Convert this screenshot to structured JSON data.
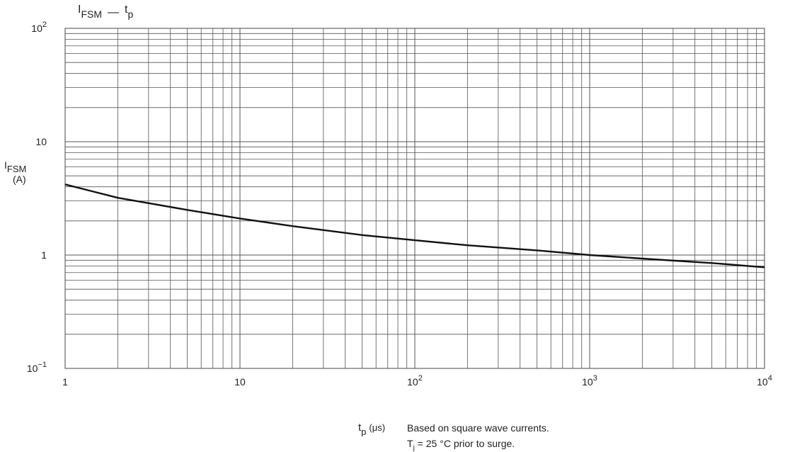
{
  "chart_data": {
    "type": "line",
    "title_main": "I",
    "title_sub": "FSM",
    "title_dash": "—",
    "title_var": "t",
    "title_var_sub": "p",
    "ylabel_main": "I",
    "ylabel_sub": "FSM",
    "ylabel_unit": "(A)",
    "xlabel_main": "t",
    "xlabel_sub": "p",
    "xlabel_unit": "(μs)",
    "x_scale": "log",
    "y_scale": "log",
    "xlim": [
      1,
      10000
    ],
    "ylim": [
      0.1,
      100
    ],
    "grid": true,
    "x_ticks": [
      {
        "value": 1,
        "base": "1",
        "exp": ""
      },
      {
        "value": 10,
        "base": "10",
        "exp": ""
      },
      {
        "value": 100,
        "base": "10",
        "exp": "2"
      },
      {
        "value": 1000,
        "base": "10",
        "exp": "3"
      },
      {
        "value": 10000,
        "base": "10",
        "exp": "4"
      }
    ],
    "y_ticks": [
      {
        "value": 100,
        "base": "10",
        "exp": "2"
      },
      {
        "value": 10,
        "base": "10",
        "exp": ""
      },
      {
        "value": 1,
        "base": "1",
        "exp": ""
      },
      {
        "value": 0.1,
        "base": "10",
        "exp": "−1"
      }
    ],
    "series": [
      {
        "x": [
          1,
          2,
          5,
          10,
          20,
          50,
          100,
          200,
          500,
          1000,
          2000,
          5000,
          10000
        ],
        "y": [
          4.2,
          3.2,
          2.5,
          2.1,
          1.8,
          1.5,
          1.35,
          1.22,
          1.1,
          1.0,
          0.93,
          0.85,
          0.78
        ]
      }
    ]
  },
  "notes": {
    "line1": "Based on square wave currents.",
    "line2_main": "T",
    "line2_sub": "j",
    "line2_rest": " = 25 °C prior to surge."
  }
}
